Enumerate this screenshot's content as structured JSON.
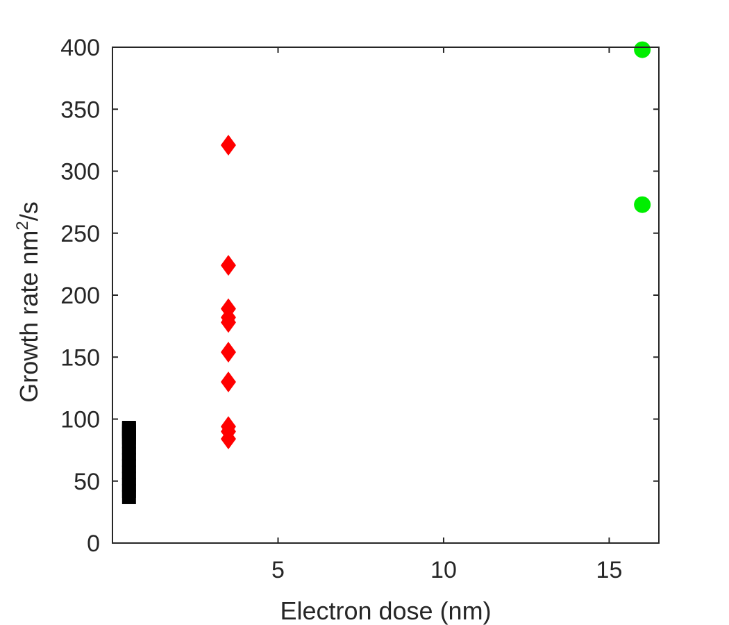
{
  "chart_data": {
    "type": "scatter",
    "title": "",
    "xlabel": "Electron dose (nm)",
    "ylabel": {
      "main": "Growth rate nm",
      "sup": "2",
      "tail": "/s"
    },
    "xlim": [
      0,
      16.5
    ],
    "ylim": [
      0,
      400
    ],
    "xticks": [
      5,
      10,
      15
    ],
    "yticks": [
      0,
      50,
      100,
      150,
      200,
      250,
      300,
      350,
      400
    ],
    "grid": false,
    "box": true,
    "series": [
      {
        "marker": "square",
        "color": "#000000",
        "x": [
          0.5,
          0.5,
          0.5,
          0.5,
          0.5,
          0.5,
          0.5,
          0.5,
          0.5,
          0.5,
          0.5,
          0.5,
          0.5,
          0.5,
          0.5
        ],
        "y": [
          37,
          42,
          47,
          52,
          57,
          62,
          67,
          72,
          77,
          82,
          85,
          88,
          90,
          92,
          93
        ]
      },
      {
        "marker": "diamond",
        "color": "#ff0000",
        "x": [
          3.5,
          3.5,
          3.5,
          3.5,
          3.5,
          3.5,
          3.5,
          3.5,
          3.5,
          3.5
        ],
        "y": [
          321,
          224,
          189,
          182,
          178,
          154,
          130,
          94,
          90,
          84
        ]
      },
      {
        "marker": "circle",
        "color": "#00ee00",
        "x": [
          16,
          16
        ],
        "y": [
          398,
          273
        ]
      }
    ]
  }
}
